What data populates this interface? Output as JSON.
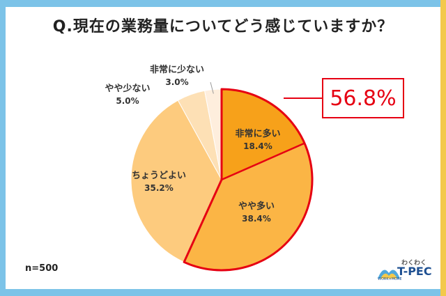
{
  "title": "Q.現在の業務量についてどう感じていますか？",
  "sample": "n=500",
  "highlight": "56.8%",
  "logo": {
    "top": "わくわく",
    "main": "T-PEC",
    "sub": "WORK×MORE"
  },
  "chart_data": {
    "type": "pie",
    "title": "Q.現在の業務量についてどう感じていますか？",
    "start": "12 o'clock, clockwise",
    "slices": [
      {
        "label": "非常に多い",
        "value": 18.4,
        "display": "18.4%",
        "color": "#f7a11a"
      },
      {
        "label": "やや多い",
        "value": 38.4,
        "display": "38.4%",
        "color": "#fbb545"
      },
      {
        "label": "ちょうどよい",
        "value": 35.2,
        "display": "35.2%",
        "color": "#fdcb7e"
      },
      {
        "label": "やや少ない",
        "value": 5.0,
        "display": "5.0%",
        "color": "#fde0b5"
      },
      {
        "label": "非常に少ない",
        "value": 3.0,
        "display": "3.0%",
        "color": "#feeedd"
      }
    ],
    "highlight": {
      "slices": [
        "非常に多い",
        "やや多い"
      ],
      "total": "56.8%",
      "color": "#e60012"
    }
  }
}
